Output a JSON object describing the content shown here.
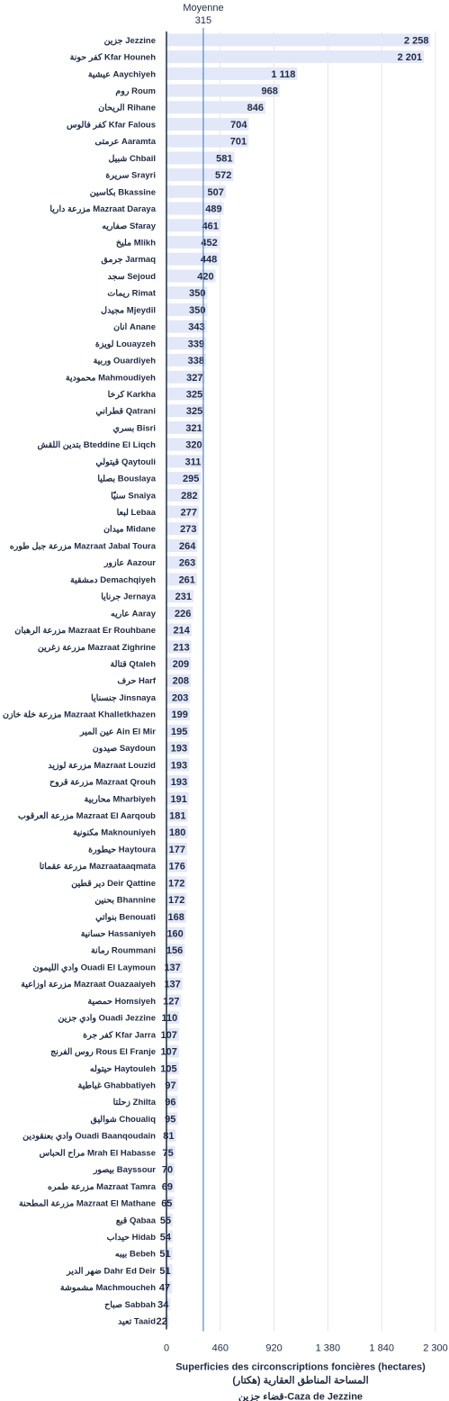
{
  "chart_data": {
    "type": "bar",
    "orientation": "horizontal",
    "categories": [
      "جزين Jezzine",
      "كفر حونة Kfar Houneh",
      "عيشية Aaychiyeh",
      "روم Roum",
      "الريحان Rihane",
      "كفر فالوس Kfar Falous",
      "عرمتى Aaramta",
      "شبيل Chbail",
      "سريرة Srayri",
      "بكاسين Bkassine",
      "مزرعة داريا Mazraat Daraya",
      "صفاريه Sfaray",
      "مليخ Mlikh",
      "جرمق Jarmaq",
      "سجد Sejoud",
      "ريمات Rimat",
      "مجيدل Mjeydil",
      "انان Anane",
      "لويزة Louayzeh",
      "وربية Ouardiyeh",
      "محمودية Mahmoudiyeh",
      "كرخا Karkha",
      "قطراني Qatrani",
      "بسري Bisri",
      "بتدين اللقش Bteddine El Liqch",
      "قيتولي Qaytouli",
      "بصليا Bouslaya",
      "سنيّا Snaiya",
      "لبعا Lebaa",
      "ميدان Midane",
      "مزرعة جبل طوره Mazraat Jabal Toura",
      "عازور Aazour",
      "دمشقية Demachqiyeh",
      "جرنايا Jernaya",
      "عاريه Aaray",
      "مزرعة الرهبان Mazraat Er Rouhbane",
      "مزرعة زغرين Mazraat Zighrine",
      "قتالة Qtaleh",
      "حرف Harf",
      "جنسنايا Jinsnaya",
      "مزرعة خلة خازن Mazraat Khalletkhazen",
      "عين المير Ain El Mir",
      "صيدون Saydoun",
      "مزرعة لوزيد Mazraat Louzid",
      "مزرعة قروح Mazraat Qrouh",
      "محاربية Mharbiyeh",
      "مزرعة العرقوب Mazraat El Aarqoub",
      "مكنونية Maknouniyeh",
      "حيطورة Haytoura",
      "مزرعة عقماتا Mazraataaqmata",
      "دير قطين Deir Qattine",
      "بحنين Bhannine",
      "بنواتي Benouati",
      "حسانية Hassaniyeh",
      "رمانة Roummani",
      "وادي الليمون Ouadi El Laymoun",
      "مزرعة اوزاعية Mazraat Ouazaaiyeh",
      "حمصية Homsiyeh",
      "وادي جزين Ouadi Jezzine",
      "كفر جرة Kfar Jarra",
      "روس الفرنج Rous El Franje",
      "حيتوله Haytouleh",
      "غباطية Ghabbatiyeh",
      "زحلتا Zhilta",
      "شواليق Choualiq",
      "وادي بعنقودين Ouadi Baanqoudain",
      "مراح الحباس Mrah El Habasse",
      "بيصور Bayssour",
      "مزرعة طمره Mazraat Tamra",
      "مزرعة المطحنة Mazraat El Mathane",
      "قبع Qabaa",
      "حيداب Hidab",
      "بيبه Bebeh",
      "ضهر الدير Dahr Ed Deir",
      "مشموشة Machmoucheh",
      "صباح Sabbah",
      "تعيد Taaid"
    ],
    "values": [
      2258,
      2201,
      1118,
      968,
      846,
      704,
      701,
      581,
      572,
      507,
      489,
      461,
      452,
      448,
      420,
      350,
      350,
      343,
      339,
      338,
      327,
      325,
      325,
      321,
      320,
      311,
      295,
      282,
      277,
      273,
      264,
      263,
      261,
      231,
      226,
      214,
      213,
      209,
      208,
      203,
      199,
      195,
      193,
      193,
      193,
      191,
      181,
      180,
      177,
      176,
      172,
      172,
      168,
      160,
      156,
      137,
      137,
      127,
      110,
      107,
      107,
      105,
      97,
      96,
      95,
      81,
      75,
      70,
      69,
      65,
      55,
      54,
      51,
      51,
      47,
      34,
      22
    ],
    "value_labels": [
      "2 258",
      "2 201",
      "1 118",
      "968",
      "846",
      "704",
      "701",
      "581",
      "572",
      "507",
      "489",
      "461",
      "452",
      "448",
      "420",
      "350",
      "350",
      "343",
      "339",
      "338",
      "327",
      "325",
      "325",
      "321",
      "320",
      "311",
      "295",
      "282",
      "277",
      "273",
      "264",
      "263",
      "261",
      "231",
      "226",
      "214",
      "213",
      "209",
      "208",
      "203",
      "199",
      "195",
      "193",
      "193",
      "193",
      "191",
      "181",
      "180",
      "177",
      "176",
      "172",
      "172",
      "168",
      "160",
      "156",
      "137",
      "137",
      "127",
      "110",
      "107",
      "107",
      "105",
      "97",
      "96",
      "95",
      "81",
      "75",
      "70",
      "69",
      "65",
      "55",
      "54",
      "51",
      "51",
      "47",
      "34",
      "22"
    ],
    "xlim": [
      0,
      2300
    ],
    "xticks": [
      0,
      460,
      920,
      1380,
      1840,
      2300
    ],
    "xtick_labels": [
      "0",
      "460",
      "920",
      "1 380",
      "1 840",
      "2 300"
    ],
    "grid": true,
    "reference_line": {
      "label": "Moyenne",
      "value": 315,
      "value_label": "315"
    },
    "xlabel": [
      "Superficies des circonscriptions foncières (hectares)",
      "المساحة المناطق العقارية (هكتار)",
      "قضاء جزين-Caza de Jezzine"
    ],
    "colors": {
      "bar": "#e3e8f8",
      "text": "#1f2a44",
      "reference_line": "#3a6fb0",
      "grid": "#e6e6e6",
      "axis": "#1f2a44"
    }
  }
}
